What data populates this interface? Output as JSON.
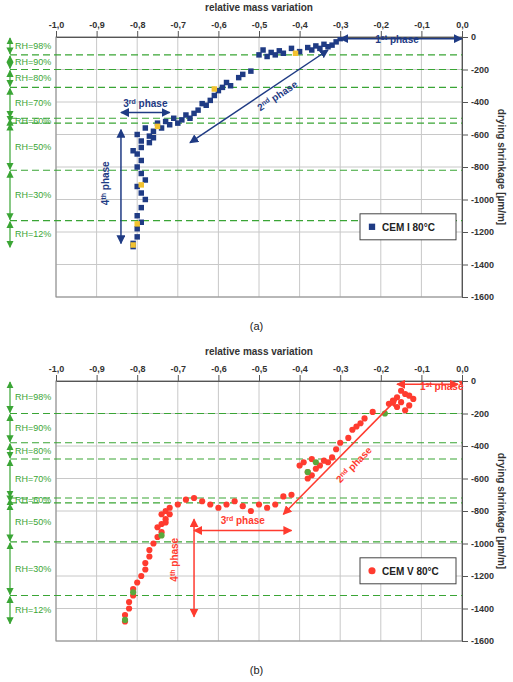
{
  "chart_data": [
    {
      "type": "scatter",
      "caption": "(a)",
      "xlabel": "relative mass variation",
      "ylabel": "drying shrinkage [µm/m]",
      "xlim": [
        -1,
        0
      ],
      "ylim": [
        -1600,
        0
      ],
      "xticks": [
        {
          "value": -1,
          "label": "-1,0"
        },
        {
          "value": -0.9,
          "label": "-0,9"
        },
        {
          "value": -0.8,
          "label": "-0,8"
        },
        {
          "value": -0.7,
          "label": "-0,7"
        },
        {
          "value": -0.6,
          "label": "-0,6"
        },
        {
          "value": -0.5,
          "label": "-0,5"
        },
        {
          "value": -0.4,
          "label": "-0,4"
        },
        {
          "value": -0.3,
          "label": "-0,3"
        },
        {
          "value": -0.2,
          "label": "-0,2"
        },
        {
          "value": -0.1,
          "label": "-0,1"
        },
        {
          "value": 0,
          "label": "0,0"
        }
      ],
      "yticks": [
        0,
        -200,
        -400,
        -600,
        -800,
        -1000,
        -1200,
        -1400,
        -1600
      ],
      "grid": true,
      "legend": "right",
      "marker": "square",
      "series": [
        {
          "name": "CEM I 80°C",
          "color": "#1f3b84",
          "x": [
            -0.3,
            -0.31,
            -0.32,
            -0.33,
            -0.34,
            -0.35,
            -0.36,
            -0.37,
            -0.38,
            -0.4,
            -0.42,
            -0.44,
            -0.45,
            -0.46,
            -0.47,
            -0.48,
            -0.49,
            -0.5,
            -0.52,
            -0.54,
            -0.55,
            -0.57,
            -0.58,
            -0.59,
            -0.6,
            -0.61,
            -0.62,
            -0.63,
            -0.64,
            -0.65,
            -0.66,
            -0.67,
            -0.68,
            -0.69,
            -0.7,
            -0.71,
            -0.72,
            -0.73,
            -0.74,
            -0.75,
            -0.76,
            -0.77,
            -0.78,
            -0.79,
            -0.8,
            -0.79,
            -0.8,
            -0.79,
            -0.8,
            -0.79,
            -0.78,
            -0.8,
            -0.79,
            -0.78,
            -0.79,
            -0.8,
            -0.79,
            -0.8,
            -0.8,
            -0.81,
            -0.81,
            -0.77,
            -0.76,
            -0.81
          ],
          "values": [
            -10,
            -30,
            -50,
            -60,
            -45,
            -70,
            -55,
            -80,
            -65,
            -90,
            -70,
            -100,
            -85,
            -110,
            -95,
            -120,
            -80,
            -110,
            -210,
            -230,
            -250,
            -300,
            -280,
            -310,
            -330,
            -360,
            -390,
            -420,
            -410,
            -450,
            -470,
            -500,
            -480,
            -510,
            -530,
            -500,
            -540,
            -520,
            -560,
            -530,
            -580,
            -610,
            -560,
            -640,
            -600,
            -680,
            -720,
            -760,
            -800,
            -840,
            -880,
            -920,
            -960,
            -1000,
            -1050,
            -1100,
            -1140,
            -1180,
            -1230,
            -1270,
            -1290,
            -650,
            -620,
            -700
          ]
        },
        {
          "color": "#f2c230",
          "x": [
            -0.41,
            -0.61,
            -0.75,
            -0.79,
            -0.8,
            -0.81
          ],
          "values": [
            -100,
            -320,
            -550,
            -910,
            -1150,
            -1280
          ]
        }
      ],
      "rh_zones": [
        {
          "label": "RH=98%",
          "range": [
            0,
            -110
          ]
        },
        {
          "label": "RH=90%",
          "range": [
            -110,
            -200
          ]
        },
        {
          "label": "RH=80%",
          "range": [
            -200,
            -310
          ]
        },
        {
          "label": "RH=70%",
          "range": [
            -310,
            -500
          ]
        },
        {
          "label": "RH=60%",
          "range": [
            -500,
            -530
          ]
        },
        {
          "label": "RH=50%",
          "range": [
            -530,
            -820
          ]
        },
        {
          "label": "RH=30%",
          "range": [
            -820,
            -1130
          ]
        },
        {
          "label": "RH=12%",
          "range": [
            -1130,
            -1300
          ]
        }
      ],
      "phases": [
        {
          "label": "1st phase",
          "x": -0.16,
          "y": -35,
          "arrow": [
            [
              -0.3,
              -10
            ],
            [
              0,
              -10
            ]
          ]
        },
        {
          "label": "2nd phase",
          "x": -0.45,
          "y": -380,
          "arrow": [
            [
              -0.67,
              -650
            ],
            [
              -0.33,
              -80
            ]
          ]
        },
        {
          "label": "3rd phase",
          "x": -0.78,
          "y": -430,
          "arrow": [
            [
              -0.84,
              -465
            ],
            [
              -0.72,
              -465
            ]
          ]
        },
        {
          "label": "4th phase",
          "x": -0.87,
          "y": -900,
          "arrow": [
            [
              -0.84,
              -570
            ],
            [
              -0.84,
              -1270
            ]
          ]
        }
      ]
    },
    {
      "type": "scatter",
      "caption": "(b)",
      "xlabel": "relative mass variation",
      "ylabel": "drying shrinkage [µm/m]",
      "xlim": [
        -1,
        0
      ],
      "ylim": [
        -1600,
        0
      ],
      "xticks": [
        {
          "value": -1,
          "label": "-1,0"
        },
        {
          "value": -0.9,
          "label": "-0,9"
        },
        {
          "value": -0.8,
          "label": "-0,8"
        },
        {
          "value": -0.7,
          "label": "-0,7"
        },
        {
          "value": -0.6,
          "label": "-0,6"
        },
        {
          "value": -0.5,
          "label": "-0,5"
        },
        {
          "value": -0.4,
          "label": "-0,4"
        },
        {
          "value": -0.3,
          "label": "-0,3"
        },
        {
          "value": -0.2,
          "label": "-0,2"
        },
        {
          "value": -0.1,
          "label": "-0,1"
        },
        {
          "value": 0,
          "label": "0,0"
        }
      ],
      "yticks": [
        0,
        -200,
        -400,
        -600,
        -800,
        -1000,
        -1200,
        -1400,
        -1600
      ],
      "grid": true,
      "legend": "right",
      "marker": "circle",
      "series": [
        {
          "name": "CEM V 80°C",
          "color": "#ff3b2f",
          "x": [
            0,
            -0.15,
            -0.14,
            -0.16,
            -0.15,
            -0.13,
            -0.17,
            -0.14,
            -0.16,
            -0.12,
            -0.13,
            -0.18,
            -0.22,
            -0.24,
            -0.25,
            -0.26,
            -0.27,
            -0.28,
            -0.3,
            -0.31,
            -0.32,
            -0.33,
            -0.34,
            -0.35,
            -0.36,
            -0.37,
            -0.38,
            -0.39,
            -0.4,
            -0.38,
            -0.37,
            -0.42,
            -0.44,
            -0.46,
            -0.48,
            -0.5,
            -0.52,
            -0.54,
            -0.56,
            -0.58,
            -0.6,
            -0.62,
            -0.64,
            -0.66,
            -0.68,
            -0.7,
            -0.72,
            -0.73,
            -0.74,
            -0.73,
            -0.74,
            -0.75,
            -0.74,
            -0.75,
            -0.76,
            -0.77,
            -0.77,
            -0.78,
            -0.78,
            -0.79,
            -0.8,
            -0.81,
            -0.81,
            -0.82,
            -0.82,
            -0.83,
            -0.83,
            -0.72,
            -0.73
          ],
          "values": [
            0,
            -60,
            -80,
            -100,
            -130,
            -150,
            -120,
            -180,
            -160,
            -110,
            -90,
            -140,
            -190,
            -230,
            -260,
            -280,
            -300,
            -350,
            -380,
            -420,
            -470,
            -500,
            -490,
            -520,
            -540,
            -480,
            -560,
            -500,
            -520,
            -600,
            -580,
            -700,
            -710,
            -760,
            -780,
            -760,
            -800,
            -770,
            -740,
            -760,
            -780,
            -760,
            -740,
            -720,
            -730,
            -760,
            -780,
            -800,
            -820,
            -850,
            -880,
            -900,
            -930,
            -960,
            -1000,
            -1040,
            -1080,
            -1120,
            -1160,
            -1200,
            -1240,
            -1280,
            -1320,
            -1360,
            -1400,
            -1440,
            -1480,
            -820,
            -870
          ]
        },
        {
          "color": "#5aa83c",
          "x": [
            -0.19,
            -0.36,
            -0.38,
            -0.74,
            -0.81,
            -0.83
          ],
          "values": [
            -200,
            -500,
            -560,
            -950,
            -1300,
            -1470
          ]
        }
      ],
      "rh_zones": [
        {
          "label": "RH=98%",
          "range": [
            0,
            -200
          ]
        },
        {
          "label": "RH=90%",
          "range": [
            -200,
            -380
          ]
        },
        {
          "label": "RH=80%",
          "range": [
            -380,
            -480
          ]
        },
        {
          "label": "RH=70%",
          "range": [
            -480,
            -720
          ]
        },
        {
          "label": "RH=60%",
          "range": [
            -720,
            -750
          ]
        },
        {
          "label": "RH=50%",
          "range": [
            -750,
            -990
          ]
        },
        {
          "label": "RH=30%",
          "range": [
            -990,
            -1320
          ]
        },
        {
          "label": "RH=12%",
          "range": [
            -1320,
            -1500
          ]
        }
      ],
      "phases": [
        {
          "label": "1st phase",
          "x": -0.05,
          "y": -55,
          "arrow": [
            [
              -0.16,
              -20
            ],
            [
              -0.01,
              -20
            ]
          ]
        },
        {
          "label": "2nd phase",
          "x": -0.26,
          "y": -530,
          "arrow": [
            [
              -0.44,
              -820
            ],
            [
              -0.16,
              -110
            ]
          ]
        },
        {
          "label": "3rd phase",
          "x": -0.54,
          "y": -880,
          "arrow": [
            [
              -0.66,
              -920
            ],
            [
              -0.42,
              -920
            ]
          ]
        },
        {
          "label": "4th phase",
          "x": -0.7,
          "y": -1100,
          "arrow": [
            [
              -0.66,
              -850
            ],
            [
              -0.66,
              -1450
            ]
          ]
        }
      ]
    }
  ]
}
